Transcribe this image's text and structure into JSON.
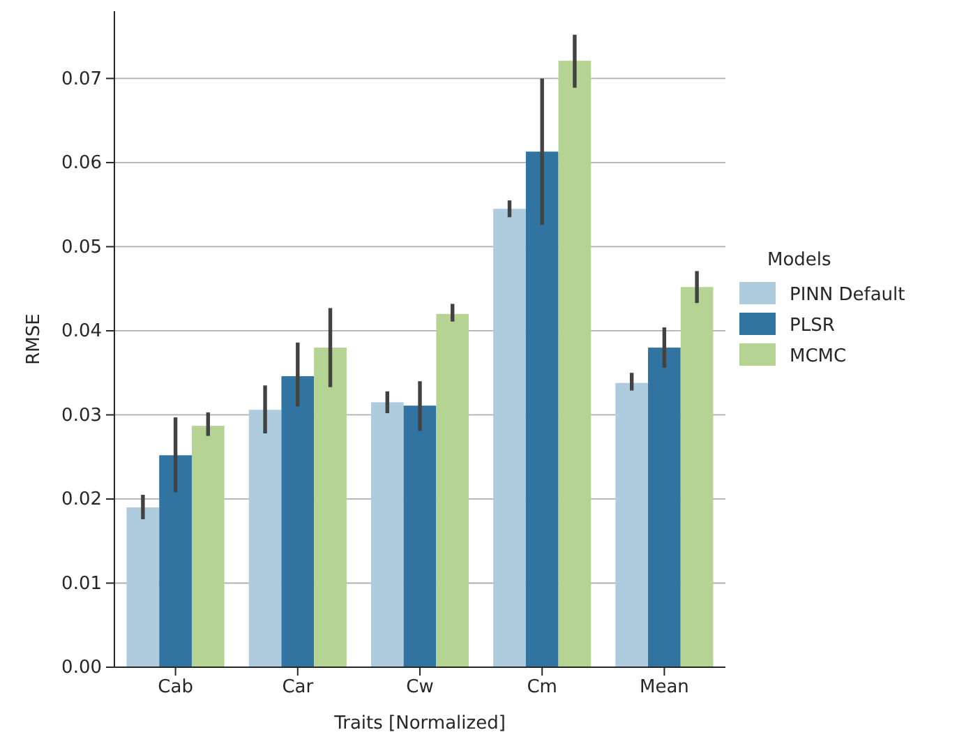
{
  "chart_data": {
    "type": "bar",
    "xlabel": "Traits [Normalized]",
    "ylabel": "RMSE",
    "legend_title": "Models",
    "legend": "right",
    "grid": "y",
    "categories": [
      "Cab",
      "Car",
      "Cw",
      "Cm",
      "Mean"
    ],
    "ylim": [
      0,
      0.078
    ],
    "yticks": [
      {
        "value": 0,
        "label": "0.00"
      },
      0.01,
      0.02,
      0.03,
      0.04,
      0.05,
      0.06,
      0.07
    ],
    "series": [
      {
        "name": "PINN Default",
        "color": "#afcbde",
        "values": [
          0.019,
          0.0306,
          0.0315,
          0.0545,
          0.0338
        ],
        "errors": [
          [
            0.0176,
            0.0205
          ],
          [
            0.0278,
            0.0335
          ],
          [
            0.0302,
            0.0328
          ],
          [
            0.0535,
            0.0555
          ],
          [
            0.0329,
            0.035
          ]
        ]
      },
      {
        "name": "PLSR",
        "color": "#3274a1",
        "values": [
          0.0252,
          0.0346,
          0.0311,
          0.0613,
          0.038
        ],
        "errors": [
          [
            0.0208,
            0.0297
          ],
          [
            0.031,
            0.0386
          ],
          [
            0.0281,
            0.034
          ],
          [
            0.0526,
            0.07
          ],
          [
            0.0356,
            0.0404
          ]
        ]
      },
      {
        "name": "MCMC",
        "color": "#b5d494",
        "values": [
          0.0287,
          0.038,
          0.042,
          0.0721,
          0.0452
        ],
        "errors": [
          [
            0.0275,
            0.0303
          ],
          [
            0.0333,
            0.0427
          ],
          [
            0.0411,
            0.0432
          ],
          [
            0.0689,
            0.0752
          ],
          [
            0.0433,
            0.0471
          ]
        ]
      }
    ]
  }
}
